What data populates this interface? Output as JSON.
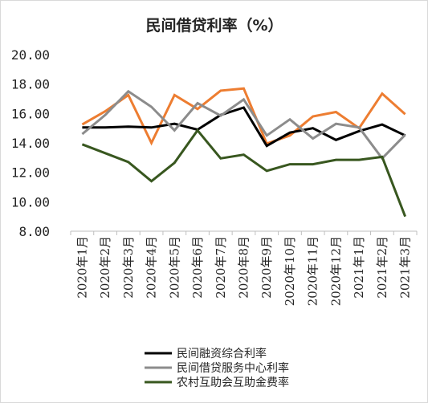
{
  "chart_data": {
    "type": "line",
    "title": "民间借贷利率（%）",
    "xlabel": "",
    "ylabel": "",
    "ylim": [
      8,
      20
    ],
    "yticks": [
      "8.00",
      "10.00",
      "12.00",
      "14.00",
      "16.00",
      "18.00",
      "20.00"
    ],
    "grid": false,
    "legend_position": "bottom",
    "categories": [
      "2020年1月",
      "2020年2月",
      "2020年3月",
      "2020年4月",
      "2020年5月",
      "2020年6月",
      "2020年7月",
      "2020年8月",
      "2020年9月",
      "2020年10月",
      "2020年11月",
      "2020年12月",
      "2021年1月",
      "2021年2月",
      "2021年3月"
    ],
    "series": [
      {
        "name": "民间融资综合利率",
        "color": "#000000",
        "values": [
          15.05,
          15.05,
          15.1,
          15.05,
          15.3,
          14.9,
          15.9,
          16.4,
          13.8,
          14.7,
          15.0,
          14.2,
          14.8,
          15.25,
          14.5
        ]
      },
      {
        "name": "民间借贷服务中心利率",
        "color": "#8c8c8c",
        "values": [
          14.6,
          15.9,
          17.5,
          16.45,
          14.85,
          16.7,
          15.85,
          16.95,
          14.5,
          15.6,
          14.3,
          15.3,
          15.05,
          12.95,
          14.55
        ]
      },
      {
        "name": "农村互助会互助金费率",
        "color": "#38571f",
        "values": [
          13.9,
          13.3,
          12.7,
          11.4,
          12.65,
          14.85,
          12.95,
          13.2,
          12.1,
          12.55,
          12.55,
          12.85,
          12.85,
          13.05,
          9.0
        ]
      },
      {
        "name": "",
        "color": "#ed7d31",
        "values": [
          15.25,
          16.15,
          17.25,
          14.0,
          17.25,
          16.3,
          17.55,
          17.7,
          13.95,
          14.5,
          15.8,
          16.1,
          15.0,
          17.35,
          15.95
        ]
      }
    ]
  }
}
